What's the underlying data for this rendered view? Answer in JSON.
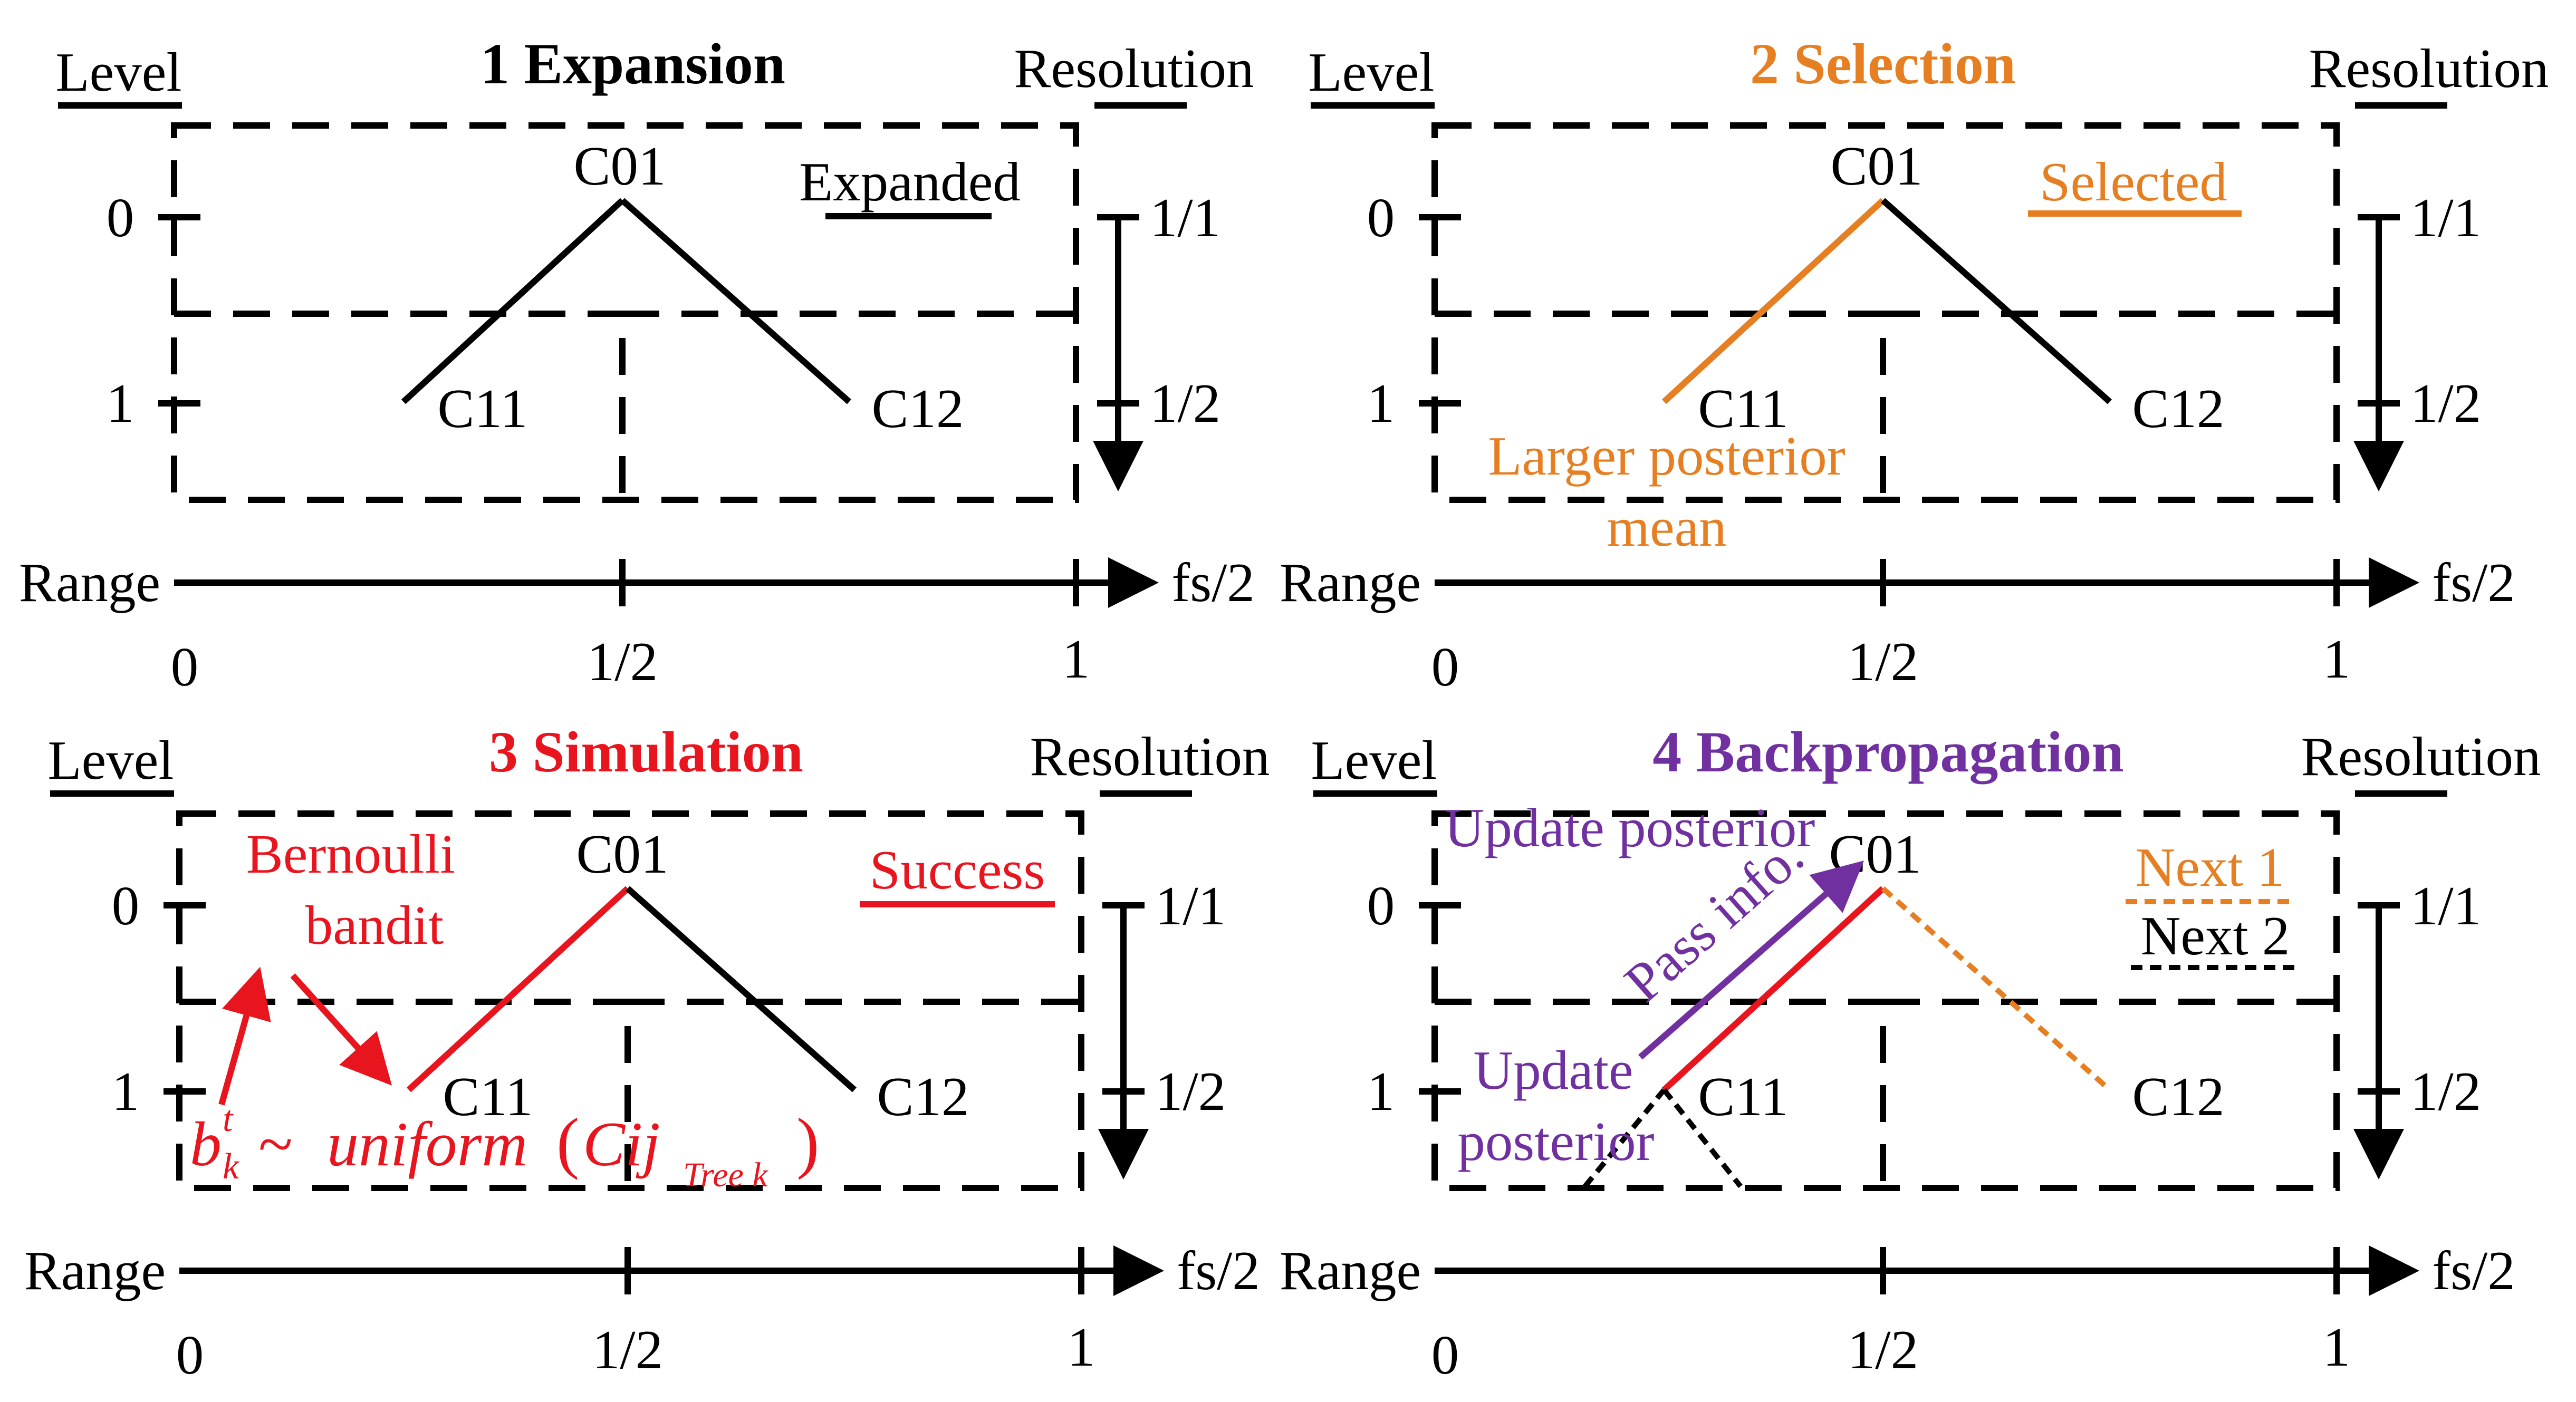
{
  "colors": {
    "black": "#000000",
    "orange": "#E67E22",
    "red": "#E8141E",
    "purple": "#7030A0"
  },
  "common": {
    "level_label": "Level",
    "resolution_label": "Resolution",
    "range_label": "Range",
    "range_end": "fs/2",
    "tick_0": "0",
    "tick_half": "1/2",
    "tick_1": "1",
    "level_0": "0",
    "level_1": "1",
    "res_1": "1/1",
    "res_2": "1/2",
    "node_root": "C01",
    "node_left": "C11",
    "node_right": "C12"
  },
  "panels": [
    {
      "title": "1 Expansion",
      "legend": "Expanded"
    },
    {
      "title": "2 Selection",
      "legend": "Selected",
      "note_line1": "Larger posterior",
      "note_line2": "mean"
    },
    {
      "title": "3 Simulation",
      "legend": "Success",
      "bandit_line1": "Bernoulli",
      "bandit_line2": "bandit",
      "formula_b": "b",
      "formula_sup": "t",
      "formula_sub": "k",
      "formula_sim": "~",
      "formula_fn": "uniform",
      "formula_open": "(",
      "formula_arg": "Cij",
      "formula_argsub": "Tree k",
      "formula_close": ")"
    },
    {
      "title": "4 Backpropagation",
      "legend_1": "Next 1",
      "legend_2": "Next 2",
      "update_top": "Update posterior",
      "pass_info": "Pass info.",
      "update_left_1": "Update",
      "update_left_2": "posterior"
    }
  ]
}
